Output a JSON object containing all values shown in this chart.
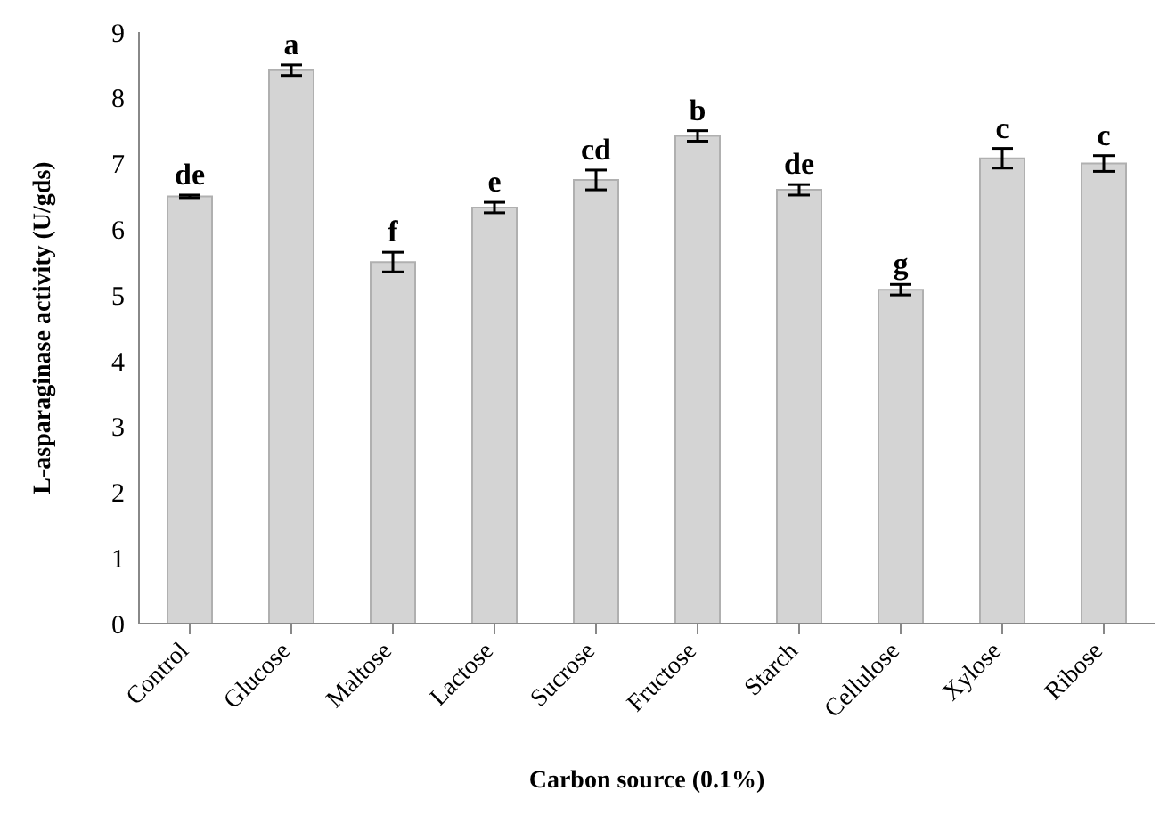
{
  "chart_data": {
    "type": "bar",
    "xlabel": "Carbon source (0.1%)",
    "ylabel": "L-asparaginase activity (U/gds)",
    "categories": [
      "Control",
      "Glucose",
      "Maltose",
      "Lactose",
      "Sucrose",
      "Fructose",
      "Starch",
      "Cellulose",
      "Xylose",
      "Ribose"
    ],
    "values": [
      6.5,
      8.42,
      5.5,
      6.33,
      6.75,
      7.42,
      6.6,
      5.08,
      7.08,
      7.0
    ],
    "errors": [
      0.02,
      0.08,
      0.15,
      0.08,
      0.15,
      0.08,
      0.08,
      0.08,
      0.15,
      0.12
    ],
    "color": "#d4d4d4",
    "ylim": [
      0,
      9
    ],
    "yticks": [
      0,
      1,
      2,
      3,
      4,
      5,
      6,
      7,
      8,
      9
    ],
    "grid": false,
    "annotations": [
      {
        "text": "de",
        "x": "Control",
        "y": 6.52
      },
      {
        "text": "a",
        "x": "Glucose",
        "y": 8.5
      },
      {
        "text": "f",
        "x": "Maltose",
        "y": 5.65
      },
      {
        "text": "e",
        "x": "Lactose",
        "y": 6.41
      },
      {
        "text": "cd",
        "x": "Sucrose",
        "y": 6.9
      },
      {
        "text": "b",
        "x": "Fructose",
        "y": 7.5
      },
      {
        "text": "de",
        "x": "Starch",
        "y": 6.68
      },
      {
        "text": "g",
        "x": "Cellulose",
        "y": 5.16
      },
      {
        "text": "c",
        "x": "Xylose",
        "y": 7.23
      },
      {
        "text": "c",
        "x": "Ribose",
        "y": 7.12
      }
    ]
  }
}
